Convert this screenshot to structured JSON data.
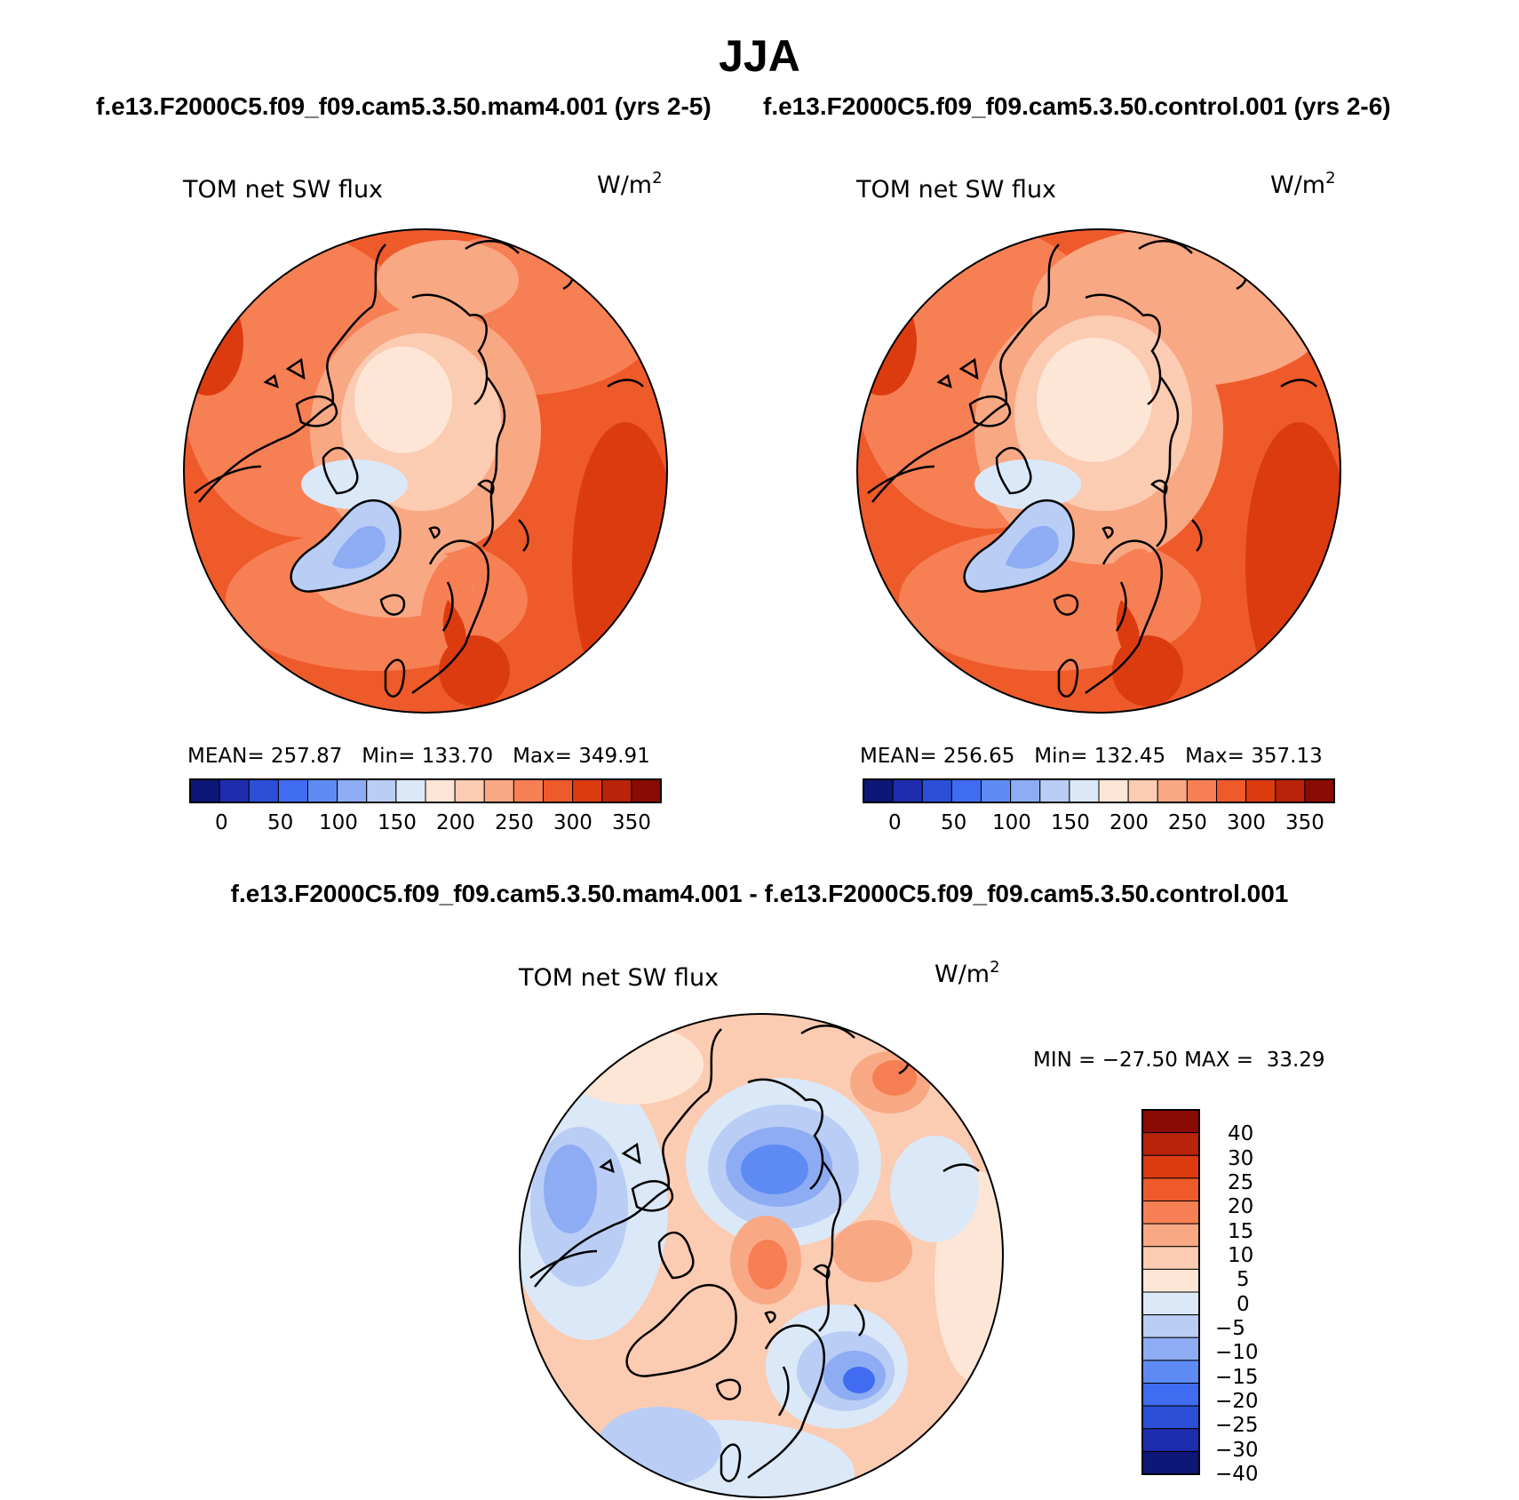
{
  "figure": {
    "title": "JJA",
    "subtitle_left": "f.e13.F2000C5.f09_f09.cam5.3.50.mam4.001 (yrs 2-5)",
    "subtitle_right": "f.e13.F2000C5.f09_f09.cam5.3.50.control.001 (yrs 2-6)",
    "diff_title": "f.e13.F2000C5.f09_f09.cam5.3.50.mam4.001 - f.e13.F2000C5.f09_f09.cam5.3.50.control.001"
  },
  "panels": [
    {
      "label": "TOM net SW flux",
      "units": "W/m",
      "units_exp": "2",
      "stats": "MEAN= 257.87   Min= 133.70   Max= 349.91",
      "colorbar_ticks": [
        "0",
        "50",
        "100",
        "150",
        "200",
        "250",
        "300",
        "350"
      ]
    },
    {
      "label": "TOM net SW flux",
      "units": "W/m",
      "units_exp": "2",
      "stats": "MEAN= 256.65   Min= 132.45   Max= 357.13",
      "colorbar_ticks": [
        "0",
        "50",
        "100",
        "150",
        "200",
        "250",
        "300",
        "350"
      ]
    },
    {
      "label": "TOM net SW flux",
      "units": "W/m",
      "units_exp": "2",
      "stats": "MIN = −27.50 MAX =  33.29",
      "colorbar_ticks": [
        "40",
        "30",
        "25",
        "20",
        "15",
        "10",
        "5",
        "0",
        "−5",
        "−10",
        "−15",
        "−20",
        "−25",
        "−30",
        "−40"
      ]
    }
  ],
  "colors": {
    "abs_scale": [
      "#0c1778",
      "#1e2cb0",
      "#2b4fd6",
      "#3f6cf0",
      "#5d8bf3",
      "#8eacf4",
      "#b9cdf5",
      "#dbe8f8",
      "#fde6d6",
      "#fbcbb2",
      "#f9a884",
      "#f77f54",
      "#ef5a2a",
      "#dc3b10",
      "#b82309",
      "#8a0b04"
    ],
    "diff_scale": [
      "#8a0b04",
      "#b82309",
      "#dc3b10",
      "#ef5a2a",
      "#f77f54",
      "#f9a884",
      "#fbcbb2",
      "#fde6d6",
      "#dbe8f8",
      "#b9cdf5",
      "#8eacf4",
      "#5d8bf3",
      "#3f6cf0",
      "#2b4fd6",
      "#1e2cb0",
      "#0c1778"
    ]
  }
}
